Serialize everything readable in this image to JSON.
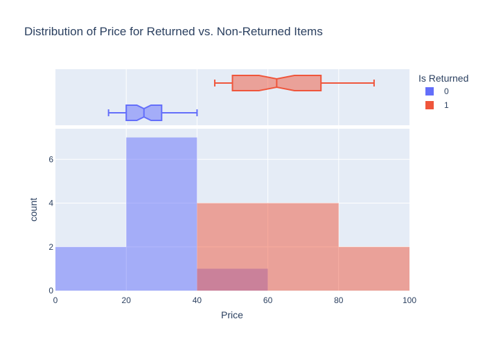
{
  "chart_data": {
    "type": "histogram",
    "title": "Distribution of Price for Returned vs. Non-Returned Items",
    "xlabel": "Price",
    "ylabel": "count",
    "xlim": [
      0,
      100
    ],
    "ylim": [
      0,
      7.4
    ],
    "x_ticks": [
      0,
      20,
      40,
      60,
      80,
      100
    ],
    "y_ticks": [
      0,
      2,
      4,
      6
    ],
    "grid": true,
    "legend": {
      "title": "Is Returned",
      "placement": "top-right"
    },
    "series": [
      {
        "name": "0",
        "color": "#636efa",
        "bins": [
          {
            "x0": 0,
            "x1": 20,
            "count": 2
          },
          {
            "x0": 20,
            "x1": 40,
            "count": 7
          },
          {
            "x0": 40,
            "x1": 60,
            "count": 1
          }
        ],
        "box": {
          "min": 15,
          "q1": 20,
          "median": 25,
          "q3": 30,
          "max": 40,
          "notched": true
        }
      },
      {
        "name": "1",
        "color": "#ef553b",
        "bins": [
          {
            "x0": 40,
            "x1": 80,
            "count": 4
          },
          {
            "x0": 80,
            "x1": 100,
            "count": 2
          }
        ],
        "box": {
          "min": 45,
          "q1": 50,
          "median": 62.5,
          "q3": 75,
          "max": 90,
          "notched": true
        }
      }
    ]
  }
}
